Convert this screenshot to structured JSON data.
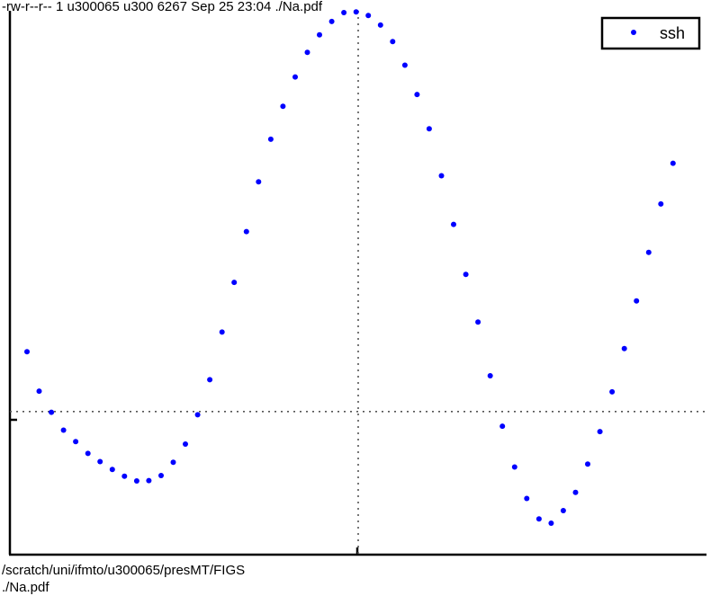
{
  "header_text": "-rw-r--r-- 1 u300065 u300 6267 Sep 25 23:04 ./Na.pdf",
  "footer_path": "/scratch/uni/ifmto/u300065/presMT/FIGS",
  "footer_file": "./Na.pdf",
  "colors": {
    "marker": "#0000ff",
    "axes": "#000000",
    "zero_lines": "#555555"
  },
  "chart_data": {
    "type": "scatter",
    "title": "",
    "xlabel": "",
    "ylabel": "",
    "grid": false,
    "legend_position": "top-right",
    "xlim": [
      0,
      2
    ],
    "ylim": [
      -0.4,
      1.12
    ],
    "reference_lines": {
      "x": 1,
      "y": 0
    },
    "series": [
      {
        "name": "ssh",
        "marker": "dot",
        "x": [
          0.049,
          0.084,
          0.119,
          0.154,
          0.189,
          0.224,
          0.259,
          0.294,
          0.329,
          0.364,
          0.399,
          0.434,
          0.469,
          0.504,
          0.539,
          0.574,
          0.609,
          0.644,
          0.679,
          0.714,
          0.749,
          0.784,
          0.819,
          0.854,
          0.889,
          0.924,
          0.959,
          0.994,
          1.029,
          1.064,
          1.099,
          1.134,
          1.169,
          1.204,
          1.239,
          1.274,
          1.309,
          1.344,
          1.379,
          1.414,
          1.449,
          1.484,
          1.519,
          1.554,
          1.589,
          1.624,
          1.659,
          1.694,
          1.729,
          1.764,
          1.799,
          1.834,
          1.869,
          1.904
        ],
        "y": [
          0.167,
          0.057,
          -0.002,
          -0.052,
          -0.084,
          -0.117,
          -0.14,
          -0.162,
          -0.181,
          -0.194,
          -0.193,
          -0.179,
          -0.142,
          -0.091,
          -0.009,
          0.089,
          0.222,
          0.361,
          0.503,
          0.642,
          0.761,
          0.853,
          0.935,
          1.004,
          1.053,
          1.09,
          1.115,
          1.117,
          1.107,
          1.08,
          1.034,
          0.968,
          0.886,
          0.79,
          0.659,
          0.523,
          0.383,
          0.25,
          0.1,
          -0.041,
          -0.155,
          -0.243,
          -0.3,
          -0.312,
          -0.277,
          -0.226,
          -0.147,
          -0.056,
          0.055,
          0.176,
          0.309,
          0.445,
          0.58,
          0.694
        ]
      }
    ]
  }
}
